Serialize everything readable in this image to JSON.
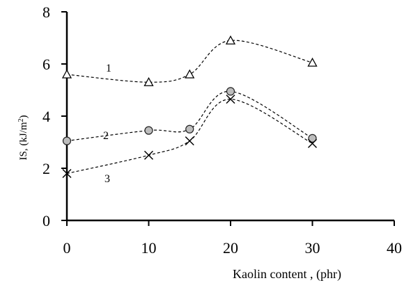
{
  "chart_data": {
    "type": "line",
    "title": "",
    "xlabel": "Kaolin content , (phr)",
    "ylabel_main": "IS, (kJ/m",
    "ylabel_sup": "2",
    "ylabel_tail": ")",
    "xlim": [
      0,
      40
    ],
    "ylim": [
      0,
      8
    ],
    "xticks": [
      0,
      10,
      20,
      30,
      40
    ],
    "yticks": [
      0,
      2,
      4,
      6,
      8
    ],
    "grid": false,
    "series": [
      {
        "name": "1",
        "marker": "triangle",
        "x": [
          0,
          10,
          15,
          20,
          30
        ],
        "y": [
          5.6,
          5.3,
          5.6,
          6.9,
          6.05
        ]
      },
      {
        "name": "2",
        "marker": "circle",
        "x": [
          0,
          10,
          15,
          20,
          30
        ],
        "y": [
          3.05,
          3.45,
          3.5,
          4.95,
          3.15
        ]
      },
      {
        "name": "3",
        "marker": "cross",
        "x": [
          0,
          10,
          15,
          20,
          30
        ],
        "y": [
          1.8,
          2.5,
          3.05,
          4.65,
          2.95
        ]
      }
    ]
  }
}
